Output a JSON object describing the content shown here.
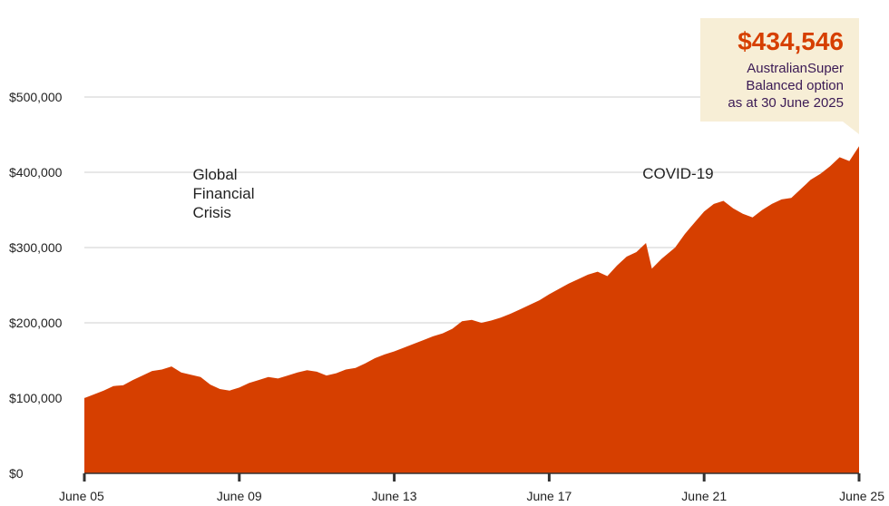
{
  "chart_data": {
    "type": "area",
    "title": "",
    "xlabel": "",
    "ylabel": "",
    "ylim": [
      0,
      500000
    ],
    "y_ticks": [
      {
        "value": 0,
        "label": "$0"
      },
      {
        "value": 100000,
        "label": "$100,000"
      },
      {
        "value": 200000,
        "label": "$200,000"
      },
      {
        "value": 300000,
        "label": "$300,000"
      },
      {
        "value": 400000,
        "label": "$400,000"
      },
      {
        "value": 500000,
        "label": "$500,000"
      }
    ],
    "x_ticks": [
      {
        "value": 2005.5,
        "label": "June 05"
      },
      {
        "value": 2009.5,
        "label": "June 09"
      },
      {
        "value": 2013.5,
        "label": "June 13"
      },
      {
        "value": 2017.5,
        "label": "June 17"
      },
      {
        "value": 2021.5,
        "label": "June 21"
      },
      {
        "value": 2025.5,
        "label": "June 25"
      }
    ],
    "xlim": [
      2005.5,
      2025.5
    ],
    "grid": true,
    "series": [
      {
        "color": "#D63F00",
        "points": [
          [
            2005.5,
            100000
          ],
          [
            2005.75,
            105000
          ],
          [
            2006.0,
            110000
          ],
          [
            2006.25,
            116000
          ],
          [
            2006.5,
            117000
          ],
          [
            2006.75,
            124000
          ],
          [
            2007.0,
            130000
          ],
          [
            2007.25,
            136000
          ],
          [
            2007.5,
            138000
          ],
          [
            2007.75,
            142000
          ],
          [
            2008.0,
            134000
          ],
          [
            2008.25,
            131000
          ],
          [
            2008.5,
            128000
          ],
          [
            2008.75,
            118000
          ],
          [
            2009.0,
            112000
          ],
          [
            2009.25,
            110000
          ],
          [
            2009.5,
            114000
          ],
          [
            2009.75,
            120000
          ],
          [
            2010.0,
            124000
          ],
          [
            2010.25,
            128000
          ],
          [
            2010.5,
            126000
          ],
          [
            2010.75,
            130000
          ],
          [
            2011.0,
            134000
          ],
          [
            2011.25,
            137000
          ],
          [
            2011.5,
            135000
          ],
          [
            2011.75,
            130000
          ],
          [
            2012.0,
            133000
          ],
          [
            2012.25,
            138000
          ],
          [
            2012.5,
            140000
          ],
          [
            2012.75,
            146000
          ],
          [
            2013.0,
            153000
          ],
          [
            2013.25,
            158000
          ],
          [
            2013.5,
            162000
          ],
          [
            2013.75,
            167000
          ],
          [
            2014.0,
            172000
          ],
          [
            2014.25,
            177000
          ],
          [
            2014.5,
            182000
          ],
          [
            2014.75,
            186000
          ],
          [
            2015.0,
            192000
          ],
          [
            2015.25,
            202000
          ],
          [
            2015.5,
            204000
          ],
          [
            2015.75,
            200000
          ],
          [
            2016.0,
            203000
          ],
          [
            2016.25,
            207000
          ],
          [
            2016.5,
            212000
          ],
          [
            2016.75,
            218000
          ],
          [
            2017.0,
            224000
          ],
          [
            2017.25,
            230000
          ],
          [
            2017.5,
            238000
          ],
          [
            2017.75,
            245000
          ],
          [
            2018.0,
            252000
          ],
          [
            2018.25,
            258000
          ],
          [
            2018.5,
            264000
          ],
          [
            2018.75,
            268000
          ],
          [
            2019.0,
            262000
          ],
          [
            2019.25,
            276000
          ],
          [
            2019.5,
            288000
          ],
          [
            2019.75,
            294000
          ],
          [
            2020.0,
            306000
          ],
          [
            2020.15,
            272000
          ],
          [
            2020.4,
            285000
          ],
          [
            2020.75,
            300000
          ],
          [
            2021.0,
            318000
          ],
          [
            2021.25,
            333000
          ],
          [
            2021.5,
            348000
          ],
          [
            2021.75,
            358000
          ],
          [
            2022.0,
            362000
          ],
          [
            2022.25,
            352000
          ],
          [
            2022.5,
            345000
          ],
          [
            2022.75,
            340000
          ],
          [
            2023.0,
            350000
          ],
          [
            2023.25,
            358000
          ],
          [
            2023.5,
            364000
          ],
          [
            2023.75,
            366000
          ],
          [
            2024.0,
            378000
          ],
          [
            2024.25,
            390000
          ],
          [
            2024.5,
            398000
          ],
          [
            2024.75,
            408000
          ],
          [
            2025.0,
            420000
          ],
          [
            2025.25,
            415000
          ],
          [
            2025.5,
            434546
          ]
        ]
      }
    ],
    "annotations": [
      {
        "x": 2009.0,
        "y": 200000,
        "lines": [
          "Global",
          "Financial",
          "Crisis"
        ]
      },
      {
        "x": 2021.5,
        "y": 370000,
        "lines": [
          "COVID-19"
        ]
      }
    ],
    "callout": {
      "value": "$434,546",
      "lines": [
        "AustralianSuper",
        "Balanced option",
        "as at 30 June 2025"
      ],
      "value_color": "#D63F00",
      "text_color": "#3B1A55",
      "background": "#F7EED6"
    }
  }
}
